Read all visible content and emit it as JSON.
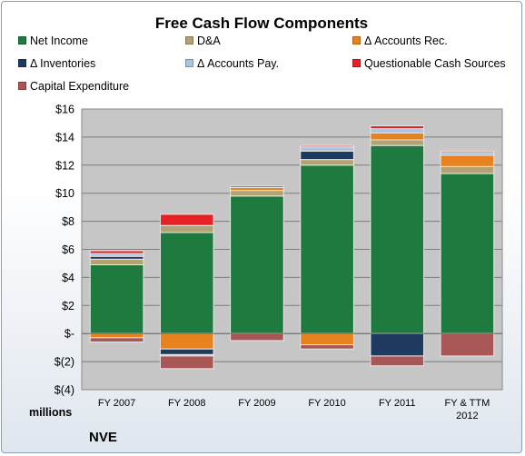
{
  "units_label": "millions",
  "company_label": "NVE",
  "chart_data": {
    "type": "bar",
    "stacked": true,
    "title": "Free Cash Flow Components",
    "categories": [
      "FY 2007",
      "FY 2008",
      "FY 2009",
      "FY 2010",
      "FY 2011",
      "FY & TTM 2012"
    ],
    "y_ticks": [
      "$16",
      "$14",
      "$12",
      "$10",
      "$8",
      "$6",
      "$4",
      "$2",
      "$-",
      "$(2)",
      "$(4)"
    ],
    "ylim": [
      -4,
      16
    ],
    "grid": true,
    "legend_position": "top",
    "series": [
      {
        "name": "Net Income",
        "color": "#1e7a3e",
        "values": [
          4.9,
          7.2,
          9.8,
          12.0,
          13.4,
          11.4
        ]
      },
      {
        "name": "D&A",
        "color": "#b5a272",
        "values": [
          0.4,
          0.5,
          0.4,
          0.4,
          0.4,
          0.5
        ]
      },
      {
        "name": "Δ Accounts Rec.",
        "color": "#e8821e",
        "values": [
          -0.3,
          -1.1,
          0.2,
          -0.8,
          0.5,
          0.8
        ]
      },
      {
        "name": "Δ Inventories",
        "color": "#1f3a5f",
        "values": [
          0.2,
          -0.4,
          0.1,
          0.6,
          -1.6,
          0.0
        ]
      },
      {
        "name": "Δ Accounts Pay.",
        "color": "#a9c4de",
        "values": [
          0.2,
          -0.1,
          0.0,
          0.3,
          0.3,
          0.2
        ]
      },
      {
        "name": "Questionable Cash Sources",
        "color": "#e52226",
        "values": [
          0.2,
          0.8,
          0.0,
          0.1,
          0.2,
          0.1
        ]
      },
      {
        "name": "Capital Expenditure",
        "color": "#a85656",
        "values": [
          -0.3,
          -0.9,
          -0.5,
          -0.3,
          -0.7,
          -1.6
        ]
      }
    ]
  }
}
